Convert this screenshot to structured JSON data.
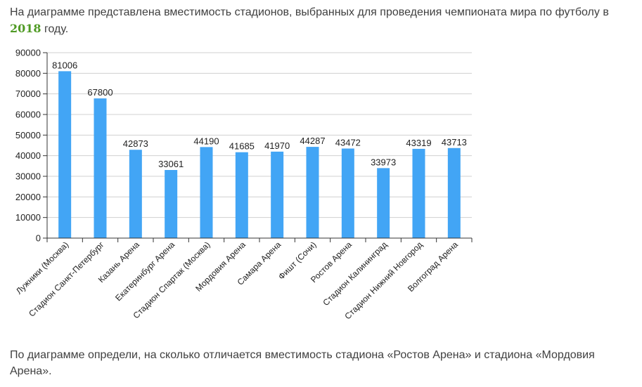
{
  "intro": {
    "text_before": "На диаграмме представлена вместимость стадионов, выбранных для проведения чемпионата мира по футболу в ",
    "year": "2018",
    "text_after": " году."
  },
  "question": {
    "text": "По диаграмме определи, на сколько  отличается вместимость стадиона «Ростов Арена» и стадиона «Мордовия Арена»."
  },
  "colors": {
    "bar": "#42a5f5",
    "year_accent": "#4f9a24",
    "grid": "#d0d0d0",
    "axis": "#333333"
  },
  "chart_data": {
    "type": "bar",
    "title": "",
    "xlabel": "",
    "ylabel": "",
    "ylim": [
      0,
      90000
    ],
    "yticks": [
      0,
      10000,
      20000,
      30000,
      40000,
      50000,
      60000,
      70000,
      80000,
      90000
    ],
    "grid": true,
    "categories": [
      "Лужники (Москва)",
      "Стадион Санкт-Петербург",
      "Казань Арена",
      "Екатеринбург Арена",
      "Стадион Спартак (Москва)",
      "Мордовия Арена",
      "Самара Арена",
      "Фишт (Сочи)",
      "Ростов Арена",
      "Стадион Калининград",
      "Стадион Нижний Новгород",
      "Волгоград Арена"
    ],
    "values": [
      81006,
      67800,
      42873,
      33061,
      44190,
      41685,
      41970,
      44287,
      43472,
      33973,
      43319,
      43713
    ]
  }
}
